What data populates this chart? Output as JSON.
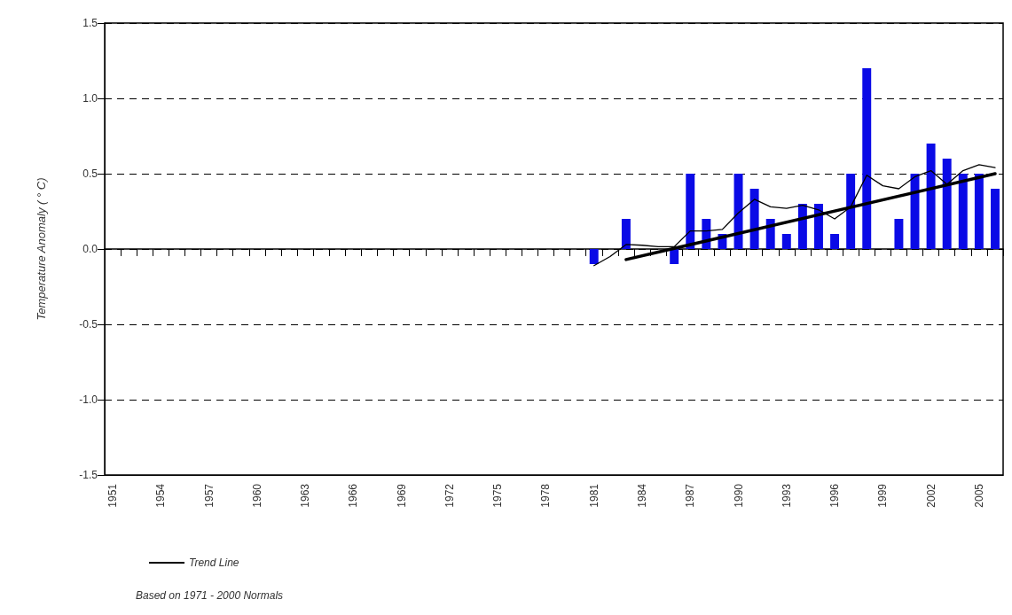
{
  "chart_data": {
    "type": "bar",
    "ylabel": "Temperature Anomaly ( ° C)",
    "categories": [
      "1951",
      null,
      null,
      "1954",
      null,
      null,
      "1957",
      null,
      null,
      "1960",
      null,
      null,
      "1963",
      null,
      null,
      "1966",
      null,
      null,
      "1969",
      null,
      null,
      "1972",
      null,
      null,
      "1975",
      null,
      null,
      "1978",
      null,
      null,
      "1981",
      null,
      null,
      "1984",
      null,
      null,
      "1987",
      null,
      null,
      "1990",
      null,
      null,
      "1993",
      null,
      null,
      "1996",
      null,
      null,
      "1999",
      null,
      null,
      "2002",
      null,
      null,
      "2005",
      null
    ],
    "series": [
      {
        "color": "#0a0ae6",
        "values": [
          null,
          null,
          null,
          null,
          null,
          null,
          null,
          null,
          null,
          null,
          null,
          null,
          null,
          null,
          null,
          null,
          null,
          null,
          null,
          null,
          null,
          null,
          null,
          null,
          null,
          null,
          null,
          null,
          null,
          null,
          -0.1,
          null,
          0.2,
          null,
          null,
          -0.1,
          0.5,
          0.2,
          0.1,
          0.5,
          0.4,
          0.2,
          0.1,
          0.3,
          0.3,
          0.1,
          0.5,
          1.2,
          null,
          0.2,
          0.5,
          0.7,
          0.6,
          0.5,
          0.5,
          0.4
        ]
      },
      {
        "type": "line",
        "color": "#000000",
        "values": [
          null,
          null,
          null,
          null,
          null,
          null,
          null,
          null,
          null,
          null,
          null,
          null,
          null,
          null,
          null,
          null,
          null,
          null,
          null,
          null,
          null,
          null,
          null,
          null,
          null,
          null,
          null,
          null,
          null,
          null,
          -0.11,
          -0.05,
          0.03,
          0.025,
          0.015,
          0.015,
          0.12,
          0.12,
          0.13,
          0.24,
          0.33,
          0.28,
          0.27,
          0.29,
          0.26,
          0.2,
          0.28,
          0.49,
          0.42,
          0.4,
          0.48,
          0.52,
          0.43,
          0.52,
          0.56,
          0.54
        ]
      },
      {
        "type": "line",
        "name": "Trend Line",
        "color": "#000000",
        "values": [
          null,
          null,
          null,
          null,
          null,
          null,
          null,
          null,
          null,
          null,
          null,
          null,
          null,
          null,
          null,
          null,
          null,
          null,
          null,
          null,
          null,
          null,
          null,
          null,
          null,
          null,
          null,
          null,
          null,
          null,
          null,
          null,
          -0.07,
          null,
          null,
          null,
          null,
          null,
          null,
          null,
          null,
          null,
          null,
          null,
          null,
          null,
          null,
          null,
          null,
          null,
          null,
          null,
          null,
          null,
          null,
          0.5
        ]
      }
    ],
    "ylim": [
      -1.5,
      1.5
    ],
    "yticks": [
      {
        "value": -1.5,
        "label": "-1.5"
      },
      {
        "value": -1,
        "label": "-1.0"
      },
      {
        "value": -0.5,
        "label": "-0.5"
      },
      {
        "value": 0,
        "label": "0.0"
      },
      {
        "value": 0.5,
        "label": "0.5"
      },
      {
        "value": 1,
        "label": "1.0"
      },
      {
        "value": 1.5,
        "label": "1.5"
      }
    ],
    "grid": "y",
    "legend": "bottom left",
    "marker": "none",
    "annotations": [
      "Based on 1971 - 2000 Normals"
    ]
  }
}
